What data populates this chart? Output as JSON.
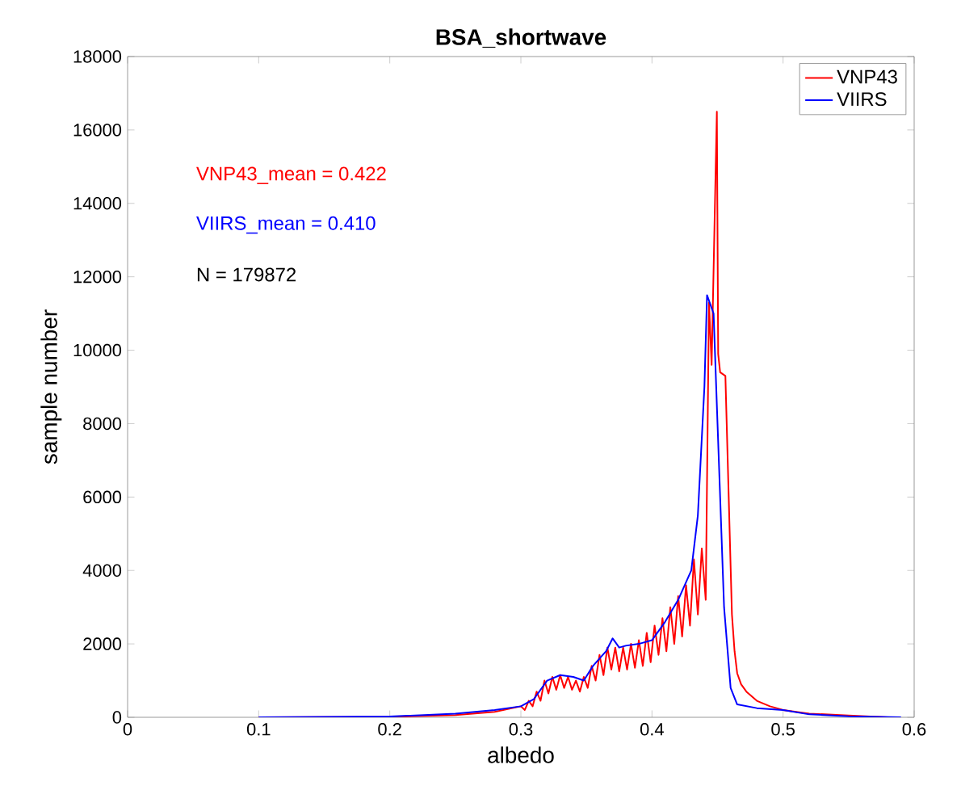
{
  "chart_data": {
    "type": "line",
    "title": "BSA_shortwave",
    "xlabel": "albedo",
    "ylabel": "sample number",
    "xlim": [
      0,
      0.6
    ],
    "ylim": [
      0,
      18000
    ],
    "xticks": [
      0,
      0.1,
      0.2,
      0.3,
      0.4,
      0.5,
      0.6
    ],
    "yticks": [
      0,
      2000,
      4000,
      6000,
      8000,
      10000,
      12000,
      14000,
      16000,
      18000
    ],
    "legend": "top right",
    "grid": false,
    "annotations": [
      "VNP43_mean = 0.422",
      "VIIRS_mean = 0.410",
      "N = 179872"
    ],
    "series": [
      {
        "name": "VNP43",
        "color": "#ff0000",
        "x": [
          0.1,
          0.2,
          0.25,
          0.28,
          0.3,
          0.303,
          0.306,
          0.309,
          0.312,
          0.315,
          0.318,
          0.321,
          0.324,
          0.327,
          0.33,
          0.333,
          0.336,
          0.339,
          0.342,
          0.345,
          0.348,
          0.351,
          0.354,
          0.357,
          0.36,
          0.363,
          0.366,
          0.369,
          0.372,
          0.375,
          0.378,
          0.381,
          0.384,
          0.387,
          0.39,
          0.393,
          0.396,
          0.399,
          0.402,
          0.405,
          0.408,
          0.411,
          0.414,
          0.417,
          0.42,
          0.423,
          0.426,
          0.429,
          0.432,
          0.435,
          0.438,
          0.441,
          0.4435,
          0.4455,
          0.4495,
          0.4505,
          0.452,
          0.456,
          0.461,
          0.463,
          0.465,
          0.468,
          0.472,
          0.48,
          0.49,
          0.5,
          0.52,
          0.55,
          0.58
        ],
        "values": [
          0,
          10,
          60,
          150,
          300,
          200,
          450,
          300,
          700,
          450,
          1000,
          650,
          1100,
          750,
          1150,
          800,
          1100,
          750,
          1000,
          700,
          1100,
          800,
          1400,
          1000,
          1700,
          1150,
          1900,
          1300,
          1900,
          1250,
          1900,
          1300,
          2000,
          1350,
          2100,
          1400,
          2300,
          1500,
          2500,
          1700,
          2700,
          1800,
          3000,
          2000,
          3300,
          2200,
          3600,
          2500,
          4300,
          2800,
          4600,
          3200,
          11300,
          9600,
          16500,
          9900,
          9400,
          9300,
          2800,
          1800,
          1200,
          900,
          700,
          450,
          300,
          200,
          100,
          50,
          0
        ]
      },
      {
        "name": "VIIRS",
        "color": "#0000ff",
        "x": [
          0.1,
          0.2,
          0.25,
          0.28,
          0.3,
          0.31,
          0.32,
          0.33,
          0.34,
          0.348,
          0.355,
          0.365,
          0.37,
          0.375,
          0.38,
          0.39,
          0.4,
          0.41,
          0.42,
          0.43,
          0.435,
          0.44,
          0.442,
          0.447,
          0.45,
          0.455,
          0.46,
          0.465,
          0.48,
          0.5,
          0.52,
          0.55,
          0.59
        ],
        "values": [
          0,
          20,
          100,
          200,
          300,
          500,
          1000,
          1150,
          1100,
          1000,
          1400,
          1800,
          2150,
          1900,
          1950,
          2000,
          2100,
          2600,
          3200,
          4000,
          5500,
          9000,
          11500,
          11000,
          8000,
          3000,
          800,
          350,
          250,
          200,
          80,
          30,
          0
        ]
      }
    ]
  }
}
